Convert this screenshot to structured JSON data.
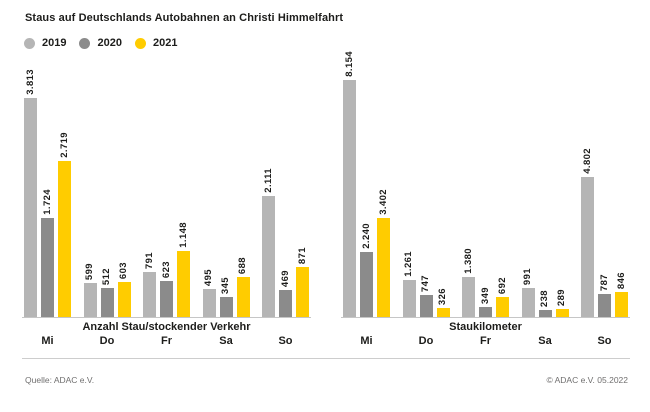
{
  "title": "Staus auf Deutschlands Autobahnen an Christi Himmelfahrt",
  "legend": [
    {
      "label": "2019",
      "color": "#b5b5b5"
    },
    {
      "label": "2020",
      "color": "#8b8b8b"
    },
    {
      "label": "2021",
      "color": "#ffcc00"
    }
  ],
  "footer": {
    "source": "Quelle: ADAC e.V.",
    "copyright": "© ADAC e.V. 05.2022"
  },
  "chart_data": [
    {
      "type": "bar",
      "title": "Anzahl Stau/stockender Verkehr",
      "categories": [
        "Mi",
        "Do",
        "Fr",
        "Sa",
        "So"
      ],
      "series": [
        {
          "name": "2019",
          "color": "#b5b5b5",
          "values": [
            3813,
            599,
            791,
            495,
            2111
          ]
        },
        {
          "name": "2020",
          "color": "#8b8b8b",
          "values": [
            1724,
            512,
            623,
            345,
            469
          ]
        },
        {
          "name": "2021",
          "color": "#ffcc00",
          "values": [
            2719,
            603,
            1148,
            688,
            871
          ]
        }
      ],
      "value_labels": "shown above bars, rotated 90deg, German thousands separator",
      "legend_position": "top-left shared",
      "grid": false,
      "ylim": [
        0,
        3813
      ]
    },
    {
      "type": "bar",
      "title": "Staukilometer",
      "categories": [
        "Mi",
        "Do",
        "Fr",
        "Sa",
        "So"
      ],
      "series": [
        {
          "name": "2019",
          "color": "#b5b5b5",
          "values": [
            8154,
            1261,
            1380,
            991,
            4802
          ]
        },
        {
          "name": "2020",
          "color": "#8b8b8b",
          "values": [
            2240,
            747,
            349,
            238,
            787
          ]
        },
        {
          "name": "2021",
          "color": "#ffcc00",
          "values": [
            3402,
            326,
            692,
            289,
            846
          ]
        }
      ],
      "value_labels": "shown above bars, rotated 90deg, German thousands separator",
      "legend_position": "top-left shared",
      "grid": false,
      "ylim": [
        0,
        8154
      ]
    }
  ]
}
